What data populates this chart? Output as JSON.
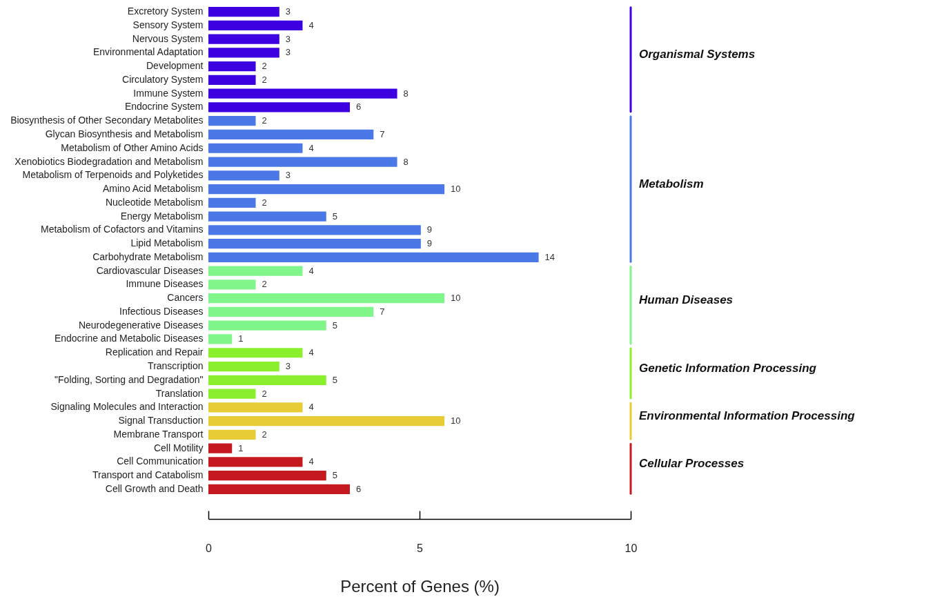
{
  "chart_data": {
    "type": "bar",
    "orientation": "horizontal",
    "xlabel": "Percent of Genes (%)",
    "xlim": [
      0,
      10
    ],
    "xticks": [
      0,
      5,
      10
    ],
    "grid": false,
    "categories": [
      "Excretory System",
      "Sensory System",
      "Nervous System",
      "Environmental Adaptation",
      "Development",
      "Circulatory System",
      "Immune System",
      "Endocrine System",
      "Biosynthesis of Other Secondary Metabolites",
      "Glycan Biosynthesis and Metabolism",
      "Metabolism of Other Amino Acids",
      "Xenobiotics Biodegradation and Metabolism",
      "Metabolism of Terpenoids and Polyketides",
      "Amino Acid Metabolism",
      "Nucleotide Metabolism",
      "Energy Metabolism",
      "Metabolism of Cofactors and Vitamins",
      "Lipid Metabolism",
      "Carbohydrate Metabolism",
      "Cardiovascular Diseases",
      "Immune Diseases",
      "Cancers",
      "Infectious Diseases",
      "Neurodegenerative Diseases",
      "Endocrine and Metabolic Diseases",
      "Replication and Repair",
      "Transcription",
      "\"Folding, Sorting and Degradation\"",
      "Translation",
      "Signaling Molecules and Interaction",
      "Signal Transduction",
      "Membrane Transport",
      "Cell Motility",
      "Cell Communication",
      "Transport and Catabolism",
      "Cell Growth and Death"
    ],
    "series": [
      {
        "name": "Organismal Systems",
        "color": "#3d00e0",
        "values": [
          1.68,
          2.23,
          1.68,
          1.68,
          1.12,
          1.12,
          4.47,
          3.35,
          null,
          null,
          null,
          null,
          null,
          null,
          null,
          null,
          null,
          null,
          null,
          null,
          null,
          null,
          null,
          null,
          null,
          null,
          null,
          null,
          null,
          null,
          null,
          null,
          null,
          null,
          null,
          null
        ]
      },
      {
        "name": "Metabolism",
        "color": "#4a78e6",
        "values": [
          null,
          null,
          null,
          null,
          null,
          null,
          null,
          null,
          1.12,
          3.91,
          2.23,
          4.47,
          1.68,
          5.59,
          1.12,
          2.79,
          5.03,
          5.03,
          7.82,
          null,
          null,
          null,
          null,
          null,
          null,
          null,
          null,
          null,
          null,
          null,
          null,
          null,
          null,
          null,
          null,
          null
        ]
      },
      {
        "name": "Human Diseases",
        "color": "#80f58a",
        "values": [
          null,
          null,
          null,
          null,
          null,
          null,
          null,
          null,
          null,
          null,
          null,
          null,
          null,
          null,
          null,
          null,
          null,
          null,
          null,
          2.23,
          1.12,
          5.59,
          3.91,
          2.79,
          0.56,
          null,
          null,
          null,
          null,
          null,
          null,
          null,
          null,
          null,
          null,
          null
        ]
      },
      {
        "name": "Genetic Information Processing",
        "color": "#8af02e",
        "values": [
          null,
          null,
          null,
          null,
          null,
          null,
          null,
          null,
          null,
          null,
          null,
          null,
          null,
          null,
          null,
          null,
          null,
          null,
          null,
          null,
          null,
          null,
          null,
          null,
          null,
          2.23,
          1.68,
          2.79,
          1.12,
          null,
          null,
          null,
          null,
          null,
          null,
          null
        ]
      },
      {
        "name": "Environmental Information Processing",
        "color": "#e8cc36",
        "values": [
          null,
          null,
          null,
          null,
          null,
          null,
          null,
          null,
          null,
          null,
          null,
          null,
          null,
          null,
          null,
          null,
          null,
          null,
          null,
          null,
          null,
          null,
          null,
          null,
          null,
          null,
          null,
          null,
          null,
          2.23,
          5.59,
          1.12,
          null,
          null,
          null,
          null
        ]
      },
      {
        "name": "Cellular Processes",
        "color": "#c41a1f",
        "values": [
          null,
          null,
          null,
          null,
          null,
          null,
          null,
          null,
          null,
          null,
          null,
          null,
          null,
          null,
          null,
          null,
          null,
          null,
          null,
          null,
          null,
          null,
          null,
          null,
          null,
          null,
          null,
          null,
          null,
          null,
          null,
          null,
          0.56,
          2.23,
          2.79,
          3.35
        ]
      }
    ],
    "annotations": [
      {
        "text": "3",
        "x": 1.68,
        "y": "Excretory System"
      },
      {
        "text": "4",
        "x": 2.23,
        "y": "Sensory System"
      },
      {
        "text": "3",
        "x": 1.68,
        "y": "Nervous System"
      },
      {
        "text": "3",
        "x": 1.68,
        "y": "Environmental Adaptation"
      },
      {
        "text": "2",
        "x": 1.12,
        "y": "Development"
      },
      {
        "text": "2",
        "x": 1.12,
        "y": "Circulatory System"
      },
      {
        "text": "8",
        "x": 4.47,
        "y": "Immune System"
      },
      {
        "text": "6",
        "x": 3.35,
        "y": "Endocrine System"
      },
      {
        "text": "2",
        "x": 1.12,
        "y": "Biosynthesis of Other Secondary Metabolites"
      },
      {
        "text": "7",
        "x": 3.91,
        "y": "Glycan Biosynthesis and Metabolism"
      },
      {
        "text": "4",
        "x": 2.23,
        "y": "Metabolism of Other Amino Acids"
      },
      {
        "text": "8",
        "x": 4.47,
        "y": "Xenobiotics Biodegradation and Metabolism"
      },
      {
        "text": "3",
        "x": 1.68,
        "y": "Metabolism of Terpenoids and Polyketides"
      },
      {
        "text": "10",
        "x": 5.59,
        "y": "Amino Acid Metabolism"
      },
      {
        "text": "2",
        "x": 1.12,
        "y": "Nucleotide Metabolism"
      },
      {
        "text": "5",
        "x": 2.79,
        "y": "Energy Metabolism"
      },
      {
        "text": "9",
        "x": 5.03,
        "y": "Metabolism of Cofactors and Vitamins"
      },
      {
        "text": "9",
        "x": 5.03,
        "y": "Lipid Metabolism"
      },
      {
        "text": "14",
        "x": 7.82,
        "y": "Carbohydrate Metabolism"
      },
      {
        "text": "4",
        "x": 2.23,
        "y": "Cardiovascular Diseases"
      },
      {
        "text": "2",
        "x": 1.12,
        "y": "Immune Diseases"
      },
      {
        "text": "10",
        "x": 5.59,
        "y": "Cancers"
      },
      {
        "text": "7",
        "x": 3.91,
        "y": "Infectious Diseases"
      },
      {
        "text": "5",
        "x": 2.79,
        "y": "Neurodegenerative Diseases"
      },
      {
        "text": "1",
        "x": 0.56,
        "y": "Endocrine and Metabolic Diseases"
      },
      {
        "text": "4",
        "x": 2.23,
        "y": "Replication and Repair"
      },
      {
        "text": "3",
        "x": 1.68,
        "y": "Transcription"
      },
      {
        "text": "5",
        "x": 2.79,
        "y": "\"Folding, Sorting and Degradation\""
      },
      {
        "text": "2",
        "x": 1.12,
        "y": "Translation"
      },
      {
        "text": "4",
        "x": 2.23,
        "y": "Signaling Molecules and Interaction"
      },
      {
        "text": "10",
        "x": 5.59,
        "y": "Signal Transduction"
      },
      {
        "text": "2",
        "x": 1.12,
        "y": "Membrane Transport"
      },
      {
        "text": "1",
        "x": 0.56,
        "y": "Cell Motility"
      },
      {
        "text": "4",
        "x": 2.23,
        "y": "Cell Communication"
      },
      {
        "text": "5",
        "x": 2.79,
        "y": "Transport and Catabolism"
      },
      {
        "text": "6",
        "x": 3.35,
        "y": "Cell Growth and Death"
      }
    ]
  }
}
